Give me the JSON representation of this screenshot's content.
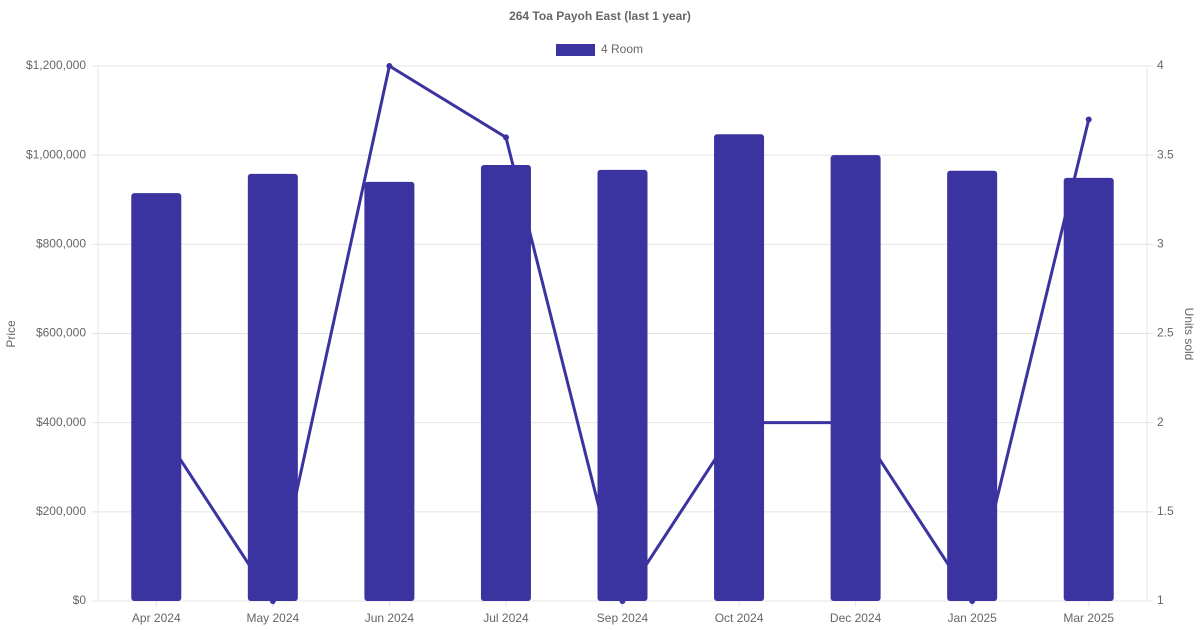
{
  "chart_data": {
    "type": "bar",
    "title": "264 Toa Payoh East (last 1 year)",
    "y_label": "Price",
    "y2_label": "Units sold",
    "categories": [
      "Apr 2024",
      "May 2024",
      "Jun 2024",
      "Jul 2024",
      "Sep 2024",
      "Oct 2024",
      "Dec 2024",
      "Jan 2025",
      "Mar 2025"
    ],
    "series": [
      {
        "name": "4 Room",
        "type": "bar",
        "color": "#3a33a0",
        "values": [
          915000,
          958000,
          940000,
          978000,
          967000,
          1047000,
          1000000,
          965000,
          949000
        ]
      },
      {
        "type": "line",
        "axis": "y2",
        "color": "#3a33a0",
        "values": [
          2,
          1,
          4,
          3.6,
          1,
          2,
          2,
          1,
          3.7
        ]
      }
    ],
    "ylim": [
      0,
      1200000
    ],
    "yticks": [
      {
        "value": 0,
        "label": "$0"
      },
      {
        "value": 200000,
        "label": "$200,000"
      },
      {
        "value": 400000,
        "label": "$400,000"
      },
      {
        "value": 600000,
        "label": "$600,000"
      },
      {
        "value": 800000,
        "label": "$800,000"
      },
      {
        "value": 1000000,
        "label": "$1,000,000"
      },
      {
        "value": 1200000,
        "label": "$1,200,000"
      }
    ],
    "y2lim": [
      1,
      4
    ],
    "y2ticks": [
      1,
      1.5,
      2,
      2.5,
      3,
      3.5,
      4
    ],
    "grid": true,
    "legend": "top"
  }
}
